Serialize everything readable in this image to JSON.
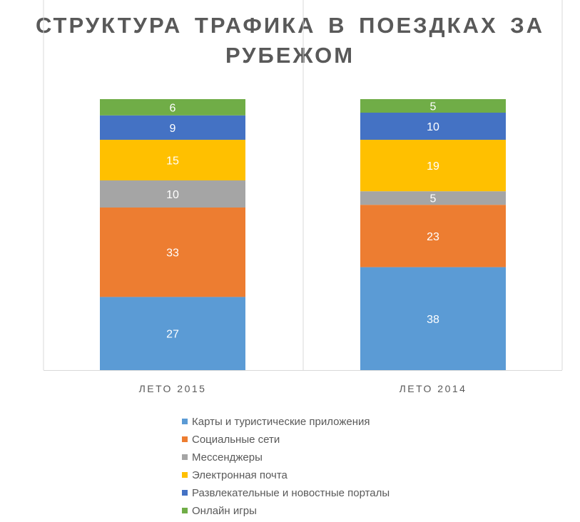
{
  "chart_data": {
    "type": "bar",
    "stacked": true,
    "title_lines": [
      "СТРУКТУРА ТРАФИКА В ПОЕЗДКАХ ЗА",
      "РУБЕЖОМ"
    ],
    "categories": [
      "ЛЕТО 2015",
      "ЛЕТО 2014"
    ],
    "series": [
      {
        "name": "Карты и туристические приложения",
        "color": "#5B9BD5",
        "values": [
          27,
          38
        ]
      },
      {
        "name": "Социальные сети",
        "color": "#ED7D31",
        "values": [
          33,
          23
        ]
      },
      {
        "name": "Мессенджеры",
        "color": "#A5A5A5",
        "values": [
          10,
          5
        ]
      },
      {
        "name": "Электронная почта",
        "color": "#FFC000",
        "values": [
          15,
          19
        ]
      },
      {
        "name": "Развлекательные и новостные порталы",
        "color": "#4472C4",
        "values": [
          9,
          10
        ]
      },
      {
        "name": "Онлайн игры",
        "color": "#70AD47",
        "values": [
          6,
          5
        ]
      }
    ],
    "ylim": [
      0,
      100
    ],
    "legend": "bottom"
  }
}
